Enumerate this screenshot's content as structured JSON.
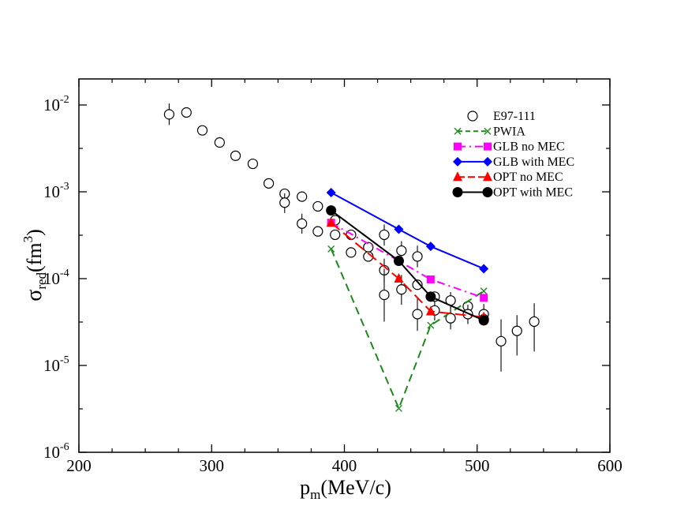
{
  "chart_data": {
    "type": "scatter",
    "title": "",
    "xlabel": {
      "main": "p",
      "sub": "m",
      "rest": "(MeV/c)"
    },
    "ylabel": {
      "main": "σ",
      "sub": "red",
      "rest": "(fm",
      "sup": "3",
      "close": ")"
    },
    "xlim": [
      200,
      600
    ],
    "ylim_log10": [
      -6,
      -1.7
    ],
    "x_ticks": [
      {
        "value": 200,
        "label": "200"
      },
      {
        "value": 300,
        "label": "300"
      },
      {
        "value": 400,
        "label": "400"
      },
      {
        "value": 500,
        "label": "500"
      },
      {
        "value": 600,
        "label": "600"
      }
    ],
    "y_ticks": [
      {
        "exp": -2,
        "base": "10",
        "sup": "-2"
      },
      {
        "exp": -3,
        "base": "10",
        "sup": "-3"
      },
      {
        "exp": -4,
        "base": "10",
        "sup": "-4"
      },
      {
        "exp": -5,
        "base": "10",
        "sup": "-5"
      },
      {
        "exp": -6,
        "base": "10",
        "sup": "-6"
      }
    ],
    "legend_position": "top-right",
    "series": [
      {
        "name": "E97-111",
        "kind": "data",
        "marker": "open-circle",
        "color": "#000000",
        "points": [
          {
            "x": 268,
            "y": 0.0078,
            "lo": 0.0059,
            "hi": 0.0104
          },
          {
            "x": 281,
            "y": 0.0082
          },
          {
            "x": 293,
            "y": 0.0051
          },
          {
            "x": 306,
            "y": 0.0037
          },
          {
            "x": 318,
            "y": 0.0026
          },
          {
            "x": 331,
            "y": 0.0021
          },
          {
            "x": 343,
            "y": 0.00125
          },
          {
            "x": 355,
            "y": 0.00095
          },
          {
            "x": 355,
            "y": 0.00075,
            "lo": 0.00057,
            "hi": 0.00096
          },
          {
            "x": 368,
            "y": 0.00088
          },
          {
            "x": 368,
            "y": 0.00043,
            "lo": 0.00033,
            "hi": 0.00056
          },
          {
            "x": 380,
            "y": 0.00068
          },
          {
            "x": 380,
            "y": 0.00035
          },
          {
            "x": 393,
            "y": 0.00047
          },
          {
            "x": 393,
            "y": 0.00032
          },
          {
            "x": 405,
            "y": 0.00032
          },
          {
            "x": 405,
            "y": 0.0002
          },
          {
            "x": 418,
            "y": 0.00023
          },
          {
            "x": 418,
            "y": 0.00018
          },
          {
            "x": 430,
            "y": 0.00032,
            "lo": 0.00024,
            "hi": 0.00042
          },
          {
            "x": 430,
            "y": 0.000125,
            "lo": 9e-05,
            "hi": 0.00017
          },
          {
            "x": 430,
            "y": 6.5e-05,
            "lo": 3.2e-05,
            "hi": 0.00013
          },
          {
            "x": 443,
            "y": 0.00021,
            "lo": 0.00016,
            "hi": 0.00027
          },
          {
            "x": 443,
            "y": 7.5e-05,
            "lo": 5e-05,
            "hi": 0.00011
          },
          {
            "x": 455,
            "y": 0.00018,
            "lo": 0.000135,
            "hi": 0.00024
          },
          {
            "x": 455,
            "y": 8.5e-05
          },
          {
            "x": 455,
            "y": 3.9e-05,
            "lo": 2.5e-05,
            "hi": 6e-05
          },
          {
            "x": 468,
            "y": 6.2e-05
          },
          {
            "x": 468,
            "y": 4.3e-05,
            "lo": 3.3e-05,
            "hi": 5.6e-05
          },
          {
            "x": 480,
            "y": 5.6e-05,
            "lo": 4.5e-05,
            "hi": 7e-05
          },
          {
            "x": 480,
            "y": 3.5e-05,
            "lo": 2.6e-05,
            "hi": 4.7e-05
          },
          {
            "x": 493,
            "y": 4.8e-05
          },
          {
            "x": 493,
            "y": 3.9e-05,
            "lo": 3e-05,
            "hi": 5e-05
          },
          {
            "x": 505,
            "y": 3.9e-05,
            "lo": 3e-05,
            "hi": 5.1e-05
          },
          {
            "x": 505,
            "y": 3.4e-05
          },
          {
            "x": 518,
            "y": 1.9e-05,
            "lo": 8.5e-06,
            "hi": 3.4e-05
          },
          {
            "x": 530,
            "y": 2.5e-05,
            "lo": 1.3e-05,
            "hi": 3.8e-05
          },
          {
            "x": 543,
            "y": 3.2e-05,
            "lo": 1.45e-05,
            "hi": 5.2e-05
          }
        ]
      },
      {
        "name": "PWIA",
        "kind": "model",
        "marker": "x",
        "color": "#1a8a1a",
        "dash": "dash",
        "x": [
          390,
          441,
          465,
          505
        ],
        "y": [
          0.00022,
          3.2e-06,
          2.9e-05,
          7.2e-05
        ]
      },
      {
        "name": "GLB no MEC",
        "kind": "model",
        "marker": "square",
        "color": "#ff00ff",
        "dash": "dashdot",
        "x": [
          390,
          441,
          465,
          505
        ],
        "y": [
          0.00044,
          0.00016,
          9.8e-05,
          6e-05
        ]
      },
      {
        "name": "GLB with MEC",
        "kind": "model",
        "marker": "diamond",
        "color": "#0000ff",
        "dash": "solid",
        "x": [
          390,
          441,
          465,
          505
        ],
        "y": [
          0.00098,
          0.00037,
          0.000235,
          0.00013
        ]
      },
      {
        "name": "OPT no MEC",
        "kind": "model",
        "marker": "triangle",
        "color": "#ff0000",
        "dash": "longdash",
        "x": [
          390,
          441,
          465,
          505
        ],
        "y": [
          0.00044,
          0.0001,
          4.2e-05,
          3.6e-05
        ]
      },
      {
        "name": "OPT with MEC",
        "kind": "model",
        "marker": "filled-circle",
        "color": "#000000",
        "dash": "solid",
        "x": [
          390,
          441,
          465,
          505
        ],
        "y": [
          0.00061,
          0.00016,
          6.2e-05,
          3.3e-05
        ]
      }
    ]
  }
}
